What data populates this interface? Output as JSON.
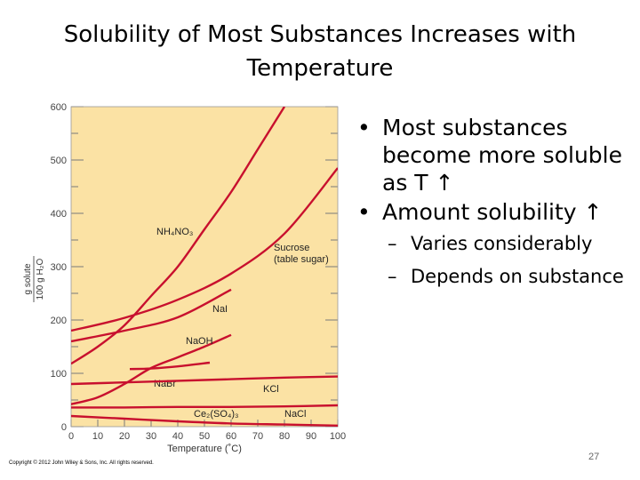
{
  "slide": {
    "title": "Solubility of Most Substances Increases with Temperature",
    "bullets": [
      {
        "text": "Most substances become more soluble as T ↑",
        "bullet_char": "•"
      },
      {
        "text": "Amount solubility ↑",
        "bullet_char": "•"
      }
    ],
    "sub_bullets": [
      {
        "text": "Varies considerably",
        "dash": "–"
      },
      {
        "text": "Depends on substance",
        "dash": "–"
      }
    ],
    "copyright": "Copyright © 2012 John Wiley & Sons, Inc. All rights reserved.",
    "page_number": "27"
  },
  "colors": {
    "curve": "#c8102e",
    "plot_bg": "#fbe2a4",
    "grid": "#7a7a7a"
  },
  "chart_data": {
    "type": "line",
    "xlabel": "Temperature (˚C)",
    "ylabel_numerator": "g solute",
    "ylabel_denominator": "100 g H₂O",
    "xlim": [
      0,
      100
    ],
    "ylim": [
      0,
      600
    ],
    "x_ticks": [
      0,
      10,
      20,
      30,
      40,
      50,
      60,
      70,
      80,
      90,
      100
    ],
    "y_ticks": [
      0,
      100,
      200,
      300,
      400,
      500,
      600
    ],
    "grid": true,
    "series": [
      {
        "name": "NH₄NO₃",
        "x": [
          0,
          10,
          20,
          30,
          40,
          50,
          60,
          70,
          80
        ],
        "y": [
          118,
          150,
          190,
          245,
          300,
          370,
          440,
          520,
          600
        ],
        "label_at": [
          32,
          360
        ]
      },
      {
        "name": "Sucrose (table sugar)",
        "x": [
          0,
          20,
          40,
          60,
          80,
          100
        ],
        "y": [
          180,
          204,
          238,
          287,
          362,
          485
        ],
        "label_at": [
          76,
          330
        ]
      },
      {
        "name": "NaI",
        "x": [
          0,
          20,
          40,
          60
        ],
        "y": [
          160,
          180,
          205,
          257
        ],
        "label_at": [
          53,
          215
        ]
      },
      {
        "name": "NaOH",
        "x": [
          0,
          10,
          20,
          30,
          40,
          50,
          60
        ],
        "y": [
          42,
          55,
          80,
          110,
          130,
          150,
          172
        ],
        "label_at": [
          43,
          155
        ]
      },
      {
        "name": "NaBr",
        "x": [
          22,
          30,
          40,
          52
        ],
        "y": [
          108,
          109,
          113,
          120
        ],
        "label_at": [
          31,
          75
        ]
      },
      {
        "name": "KCl",
        "x": [
          0,
          20,
          40,
          60,
          80,
          100
        ],
        "y": [
          80,
          83,
          86,
          89,
          92,
          94
        ],
        "label_at": [
          72,
          65
        ]
      },
      {
        "name": "Ce₂(SO₄)₃",
        "x": [
          0,
          20,
          40,
          60,
          80,
          100
        ],
        "y": [
          20,
          15,
          10,
          6,
          4,
          2
        ],
        "label_at": [
          46,
          18
        ]
      },
      {
        "name": "NaCl",
        "x": [
          0,
          20,
          40,
          60,
          80,
          100
        ],
        "y": [
          36,
          36,
          37,
          37,
          38,
          40
        ],
        "label_at": [
          80,
          18
        ]
      }
    ]
  }
}
